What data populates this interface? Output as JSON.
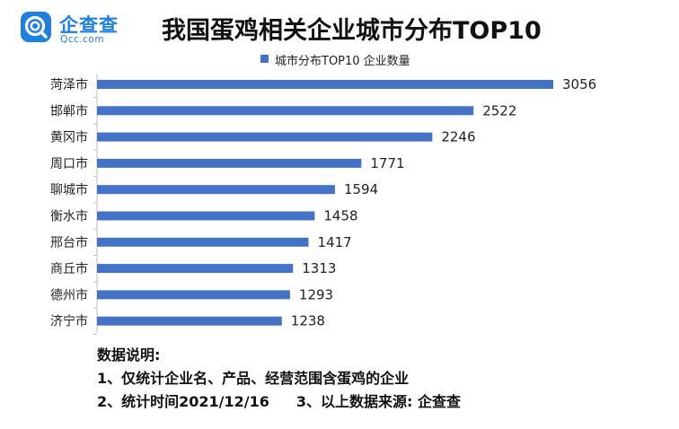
{
  "brand": {
    "name_cn": "企查查",
    "name_en": "Qcc.com",
    "color": "#1f7fe0"
  },
  "title": "我国蛋鸡相关企业城市分布TOP10",
  "chart_data": {
    "type": "bar",
    "orientation": "horizontal",
    "categories": [
      "菏泽市",
      "邯郸市",
      "黄冈市",
      "周口市",
      "聊城市",
      "衡水市",
      "邢台市",
      "商丘市",
      "德州市",
      "济宁市"
    ],
    "series": [
      {
        "name": "城市分布TOP10 企业数量",
        "values": [
          3056,
          2522,
          2246,
          1771,
          1594,
          1458,
          1417,
          1313,
          1293,
          1238
        ],
        "color": "#4472c4"
      }
    ],
    "legend": "top-center",
    "grid": false,
    "xlim": [
      0,
      3056
    ]
  },
  "notes": {
    "heading": "数据说明:",
    "line1": "1、仅统计企业名、产品、经营范围含蛋鸡的企业",
    "line2a": "2、统计时间2021/12/16",
    "line2b": "3、以上数据来源: 企查查"
  }
}
